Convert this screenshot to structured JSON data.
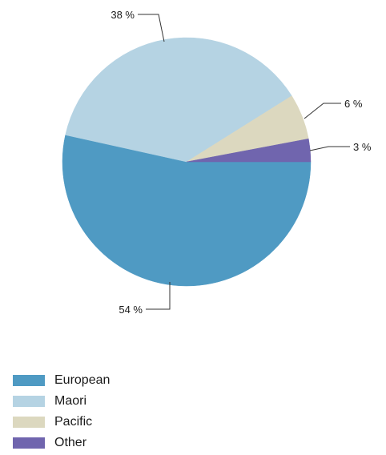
{
  "chart_data": {
    "type": "pie",
    "title": "",
    "series": [
      {
        "name": "European",
        "value": 54,
        "label": "54 %",
        "color": "#4f9ac3"
      },
      {
        "name": "Maori",
        "value": 38,
        "label": "38 %",
        "color": "#b5d3e3"
      },
      {
        "name": "Pacific",
        "value": 6,
        "label": "6 %",
        "color": "#dcd8bf"
      },
      {
        "name": "Other",
        "value": 3,
        "label": "3 %",
        "color": "#7065ae"
      }
    ],
    "start_angle_deg": 0,
    "direction": "clockwise",
    "legend_position": "bottom-left"
  }
}
